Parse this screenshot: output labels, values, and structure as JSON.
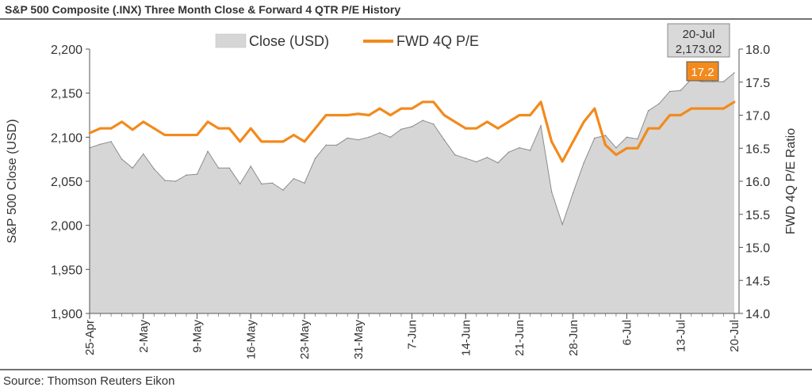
{
  "chart_data": {
    "type": "area+line",
    "title": "S&P 500 Composite (.INX) Three Month Close & Forward 4 QTR P/E History",
    "source": "Source: Thomson Reuters Eikon",
    "ylabel_left": "S&P 500 Close (USD)",
    "ylabel_right": "FWD 4Q P/E Ratio",
    "ylim_left": [
      1900,
      2200
    ],
    "ylim_right": [
      14.0,
      18.0
    ],
    "yticks_left": [
      "1,900",
      "1,950",
      "2,000",
      "2,050",
      "2,100",
      "2,150",
      "2,200"
    ],
    "yticks_right": [
      "14.0",
      "14.5",
      "15.0",
      "15.5",
      "16.0",
      "16.5",
      "17.0",
      "17.5",
      "18.0"
    ],
    "x_tick_labels": [
      "25-Apr",
      "2-May",
      "9-May",
      "16-May",
      "23-May",
      "31-May",
      "7-Jun",
      "14-Jun",
      "21-Jun",
      "28-Jun",
      "6-Jul",
      "13-Jul",
      "20-Jul"
    ],
    "x_tick_index": [
      0,
      5,
      10,
      15,
      20,
      25,
      30,
      35,
      40,
      45,
      50,
      55,
      60
    ],
    "legend": [
      "Close (USD)",
      "FWD 4Q P/E"
    ],
    "legend_position": "top",
    "annotation_close": {
      "date": "20-Jul",
      "value": "2,173.02"
    },
    "annotation_pe": "17.2",
    "colors": {
      "area_fill": "#d6d6d6",
      "area_line": "#8c8c8c",
      "line": "#f28a1d",
      "callout_pe_bg": "#f28a1d",
      "callout_close_bg": "#d9d9d9"
    },
    "series": [
      {
        "name": "Close (USD)",
        "axis": "left",
        "values": [
          2088,
          2092,
          2095,
          2075,
          2065,
          2081,
          2064,
          2051,
          2050,
          2057,
          2058,
          2084,
          2065,
          2065,
          2047,
          2067,
          2047,
          2048,
          2040,
          2053,
          2048,
          2076,
          2091,
          2091,
          2099,
          2097,
          2100,
          2105,
          2100,
          2109,
          2112,
          2119,
          2115,
          2097,
          2080,
          2076,
          2072,
          2077,
          2071,
          2083,
          2088,
          2085,
          2113,
          2038,
          2001,
          2037,
          2071,
          2099,
          2102,
          2088,
          2100,
          2098,
          2130,
          2138,
          2152,
          2153,
          2166,
          2163,
          2163,
          2163,
          2173.02
        ]
      },
      {
        "name": "FWD 4Q P/E",
        "axis": "right",
        "values": [
          16.73,
          16.8,
          16.8,
          16.9,
          16.78,
          16.9,
          16.8,
          16.7,
          16.7,
          16.7,
          16.7,
          16.9,
          16.8,
          16.8,
          16.6,
          16.8,
          16.6,
          16.6,
          16.6,
          16.7,
          16.6,
          16.8,
          17.0,
          17.0,
          17.0,
          17.02,
          17.0,
          17.1,
          17.0,
          17.1,
          17.1,
          17.2,
          17.2,
          17.0,
          16.9,
          16.8,
          16.8,
          16.9,
          16.8,
          16.9,
          17.0,
          17.0,
          17.2,
          16.6,
          16.3,
          16.6,
          16.9,
          17.1,
          16.55,
          16.4,
          16.5,
          16.5,
          16.8,
          16.8,
          17.0,
          17.0,
          17.1,
          17.1,
          17.1,
          17.1,
          17.2
        ]
      }
    ]
  }
}
